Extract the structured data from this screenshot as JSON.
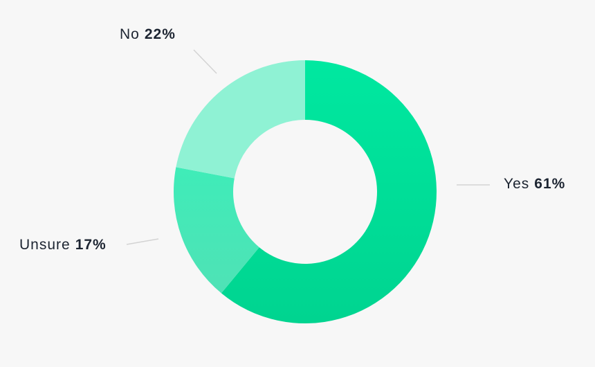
{
  "chart_data": {
    "type": "pie",
    "donut": true,
    "categories": [
      "Yes",
      "Unsure",
      "No"
    ],
    "values": [
      61,
      17,
      22
    ],
    "value_labels": [
      "61%",
      "17%",
      "22%"
    ],
    "colors": [
      "#00e8a0",
      "#3fecb8",
      "#8ff2d4"
    ],
    "gradient_bottom": [
      "#00d490",
      "#4fe2b6",
      "#8ff2d4"
    ],
    "start_angle_deg": 0,
    "direction": "clockwise",
    "legend": "none"
  }
}
